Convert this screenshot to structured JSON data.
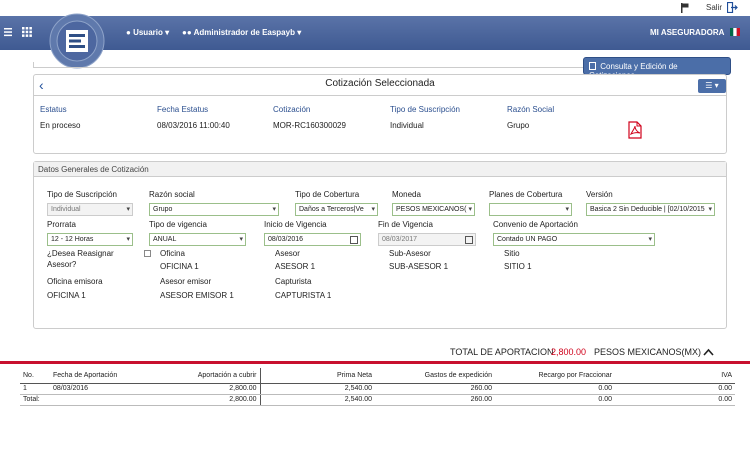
{
  "topbar": {
    "salir": "Salir"
  },
  "navbar": {
    "usuario": "Usuario",
    "admin": "Administrador de Easpayb",
    "brand": "MI ASEGURADORA"
  },
  "consulta_button": "Consulta y Edición de Cotizaciones",
  "quote": {
    "title": "Cotización Seleccionada",
    "labels": {
      "estatus": "Estatus",
      "fecha": "Fecha Estatus",
      "cotizacion": "Cotización",
      "tipo": "Tipo de Suscripción",
      "razon": "Razón Social"
    },
    "values": {
      "estatus": "En proceso",
      "fecha": "08/03/2016 11:00:40",
      "cotizacion": "MOR-RC160300029",
      "tipo": "Individual",
      "razon": "Grupo"
    }
  },
  "general": {
    "header": "Datos Generales de Cotización",
    "labels": {
      "tipo_suscripcion": "Tipo de Suscripción",
      "razon_social": "Razón social",
      "tipo_cobertura": "Tipo de Cobertura",
      "moneda": "Moneda",
      "planes": "Planes de Cobertura",
      "version": "Versión",
      "prorrata": "Prorrata",
      "tipo_vigencia": "Tipo de vigencia",
      "inicio_vigencia": "Inicio de Vigencia",
      "fin_vigencia": "Fin de Vigencia",
      "convenio": "Convenio de Aportación",
      "reasignar": "¿Desea Reasignar Asesor?",
      "oficina": "Oficina",
      "asesor": "Asesor",
      "subasesor": "Sub-Asesor",
      "sitio": "Sitio",
      "oficina_emisora": "Oficina emisora",
      "asesor_emisor": "Asesor emisor",
      "capturista": "Capturista"
    },
    "values": {
      "tipo_suscripcion": "Individual",
      "razon_social": "Grupo",
      "tipo_cobertura": "Daños a Terceros|Ve",
      "moneda": "PESOS MEXICANOS(",
      "planes": "",
      "version": "Basica 2 Sin Deducible | [02/10/2015",
      "prorrata": "12 - 12 Horas",
      "tipo_vigencia": "ANUAL",
      "inicio_vigencia": "08/03/2016",
      "fin_vigencia": "08/03/2017",
      "convenio": "Contado UN PAGO",
      "oficina": "OFICINA 1",
      "asesor": "ASESOR 1",
      "subasesor": "SUB-ASESOR 1",
      "sitio": "SITIO 1",
      "oficina_emisora": "OFICINA 1",
      "asesor_emisor": "ASESOR EMISOR 1",
      "capturista": "CAPTURISTA 1"
    }
  },
  "total": {
    "label": "TOTAL DE APORTACION",
    "amount": "2,800.00",
    "currency": "PESOS MEXICANOS(MX)",
    "amount_color": "#d0021b"
  },
  "table": {
    "headers": [
      "No.",
      "Fecha de Aportación",
      "Aportación a cubrir",
      "Prima Neta",
      "Gastos de expedición",
      "Recargo por Fraccionar",
      "IVA"
    ],
    "rows": [
      [
        "1",
        "08/03/2016",
        "2,800.00",
        "2,540.00",
        "260.00",
        "0.00",
        "0.00"
      ]
    ],
    "total_row": [
      "Total:",
      "",
      "2,800.00",
      "2,540.00",
      "260.00",
      "0.00",
      "0.00"
    ]
  }
}
